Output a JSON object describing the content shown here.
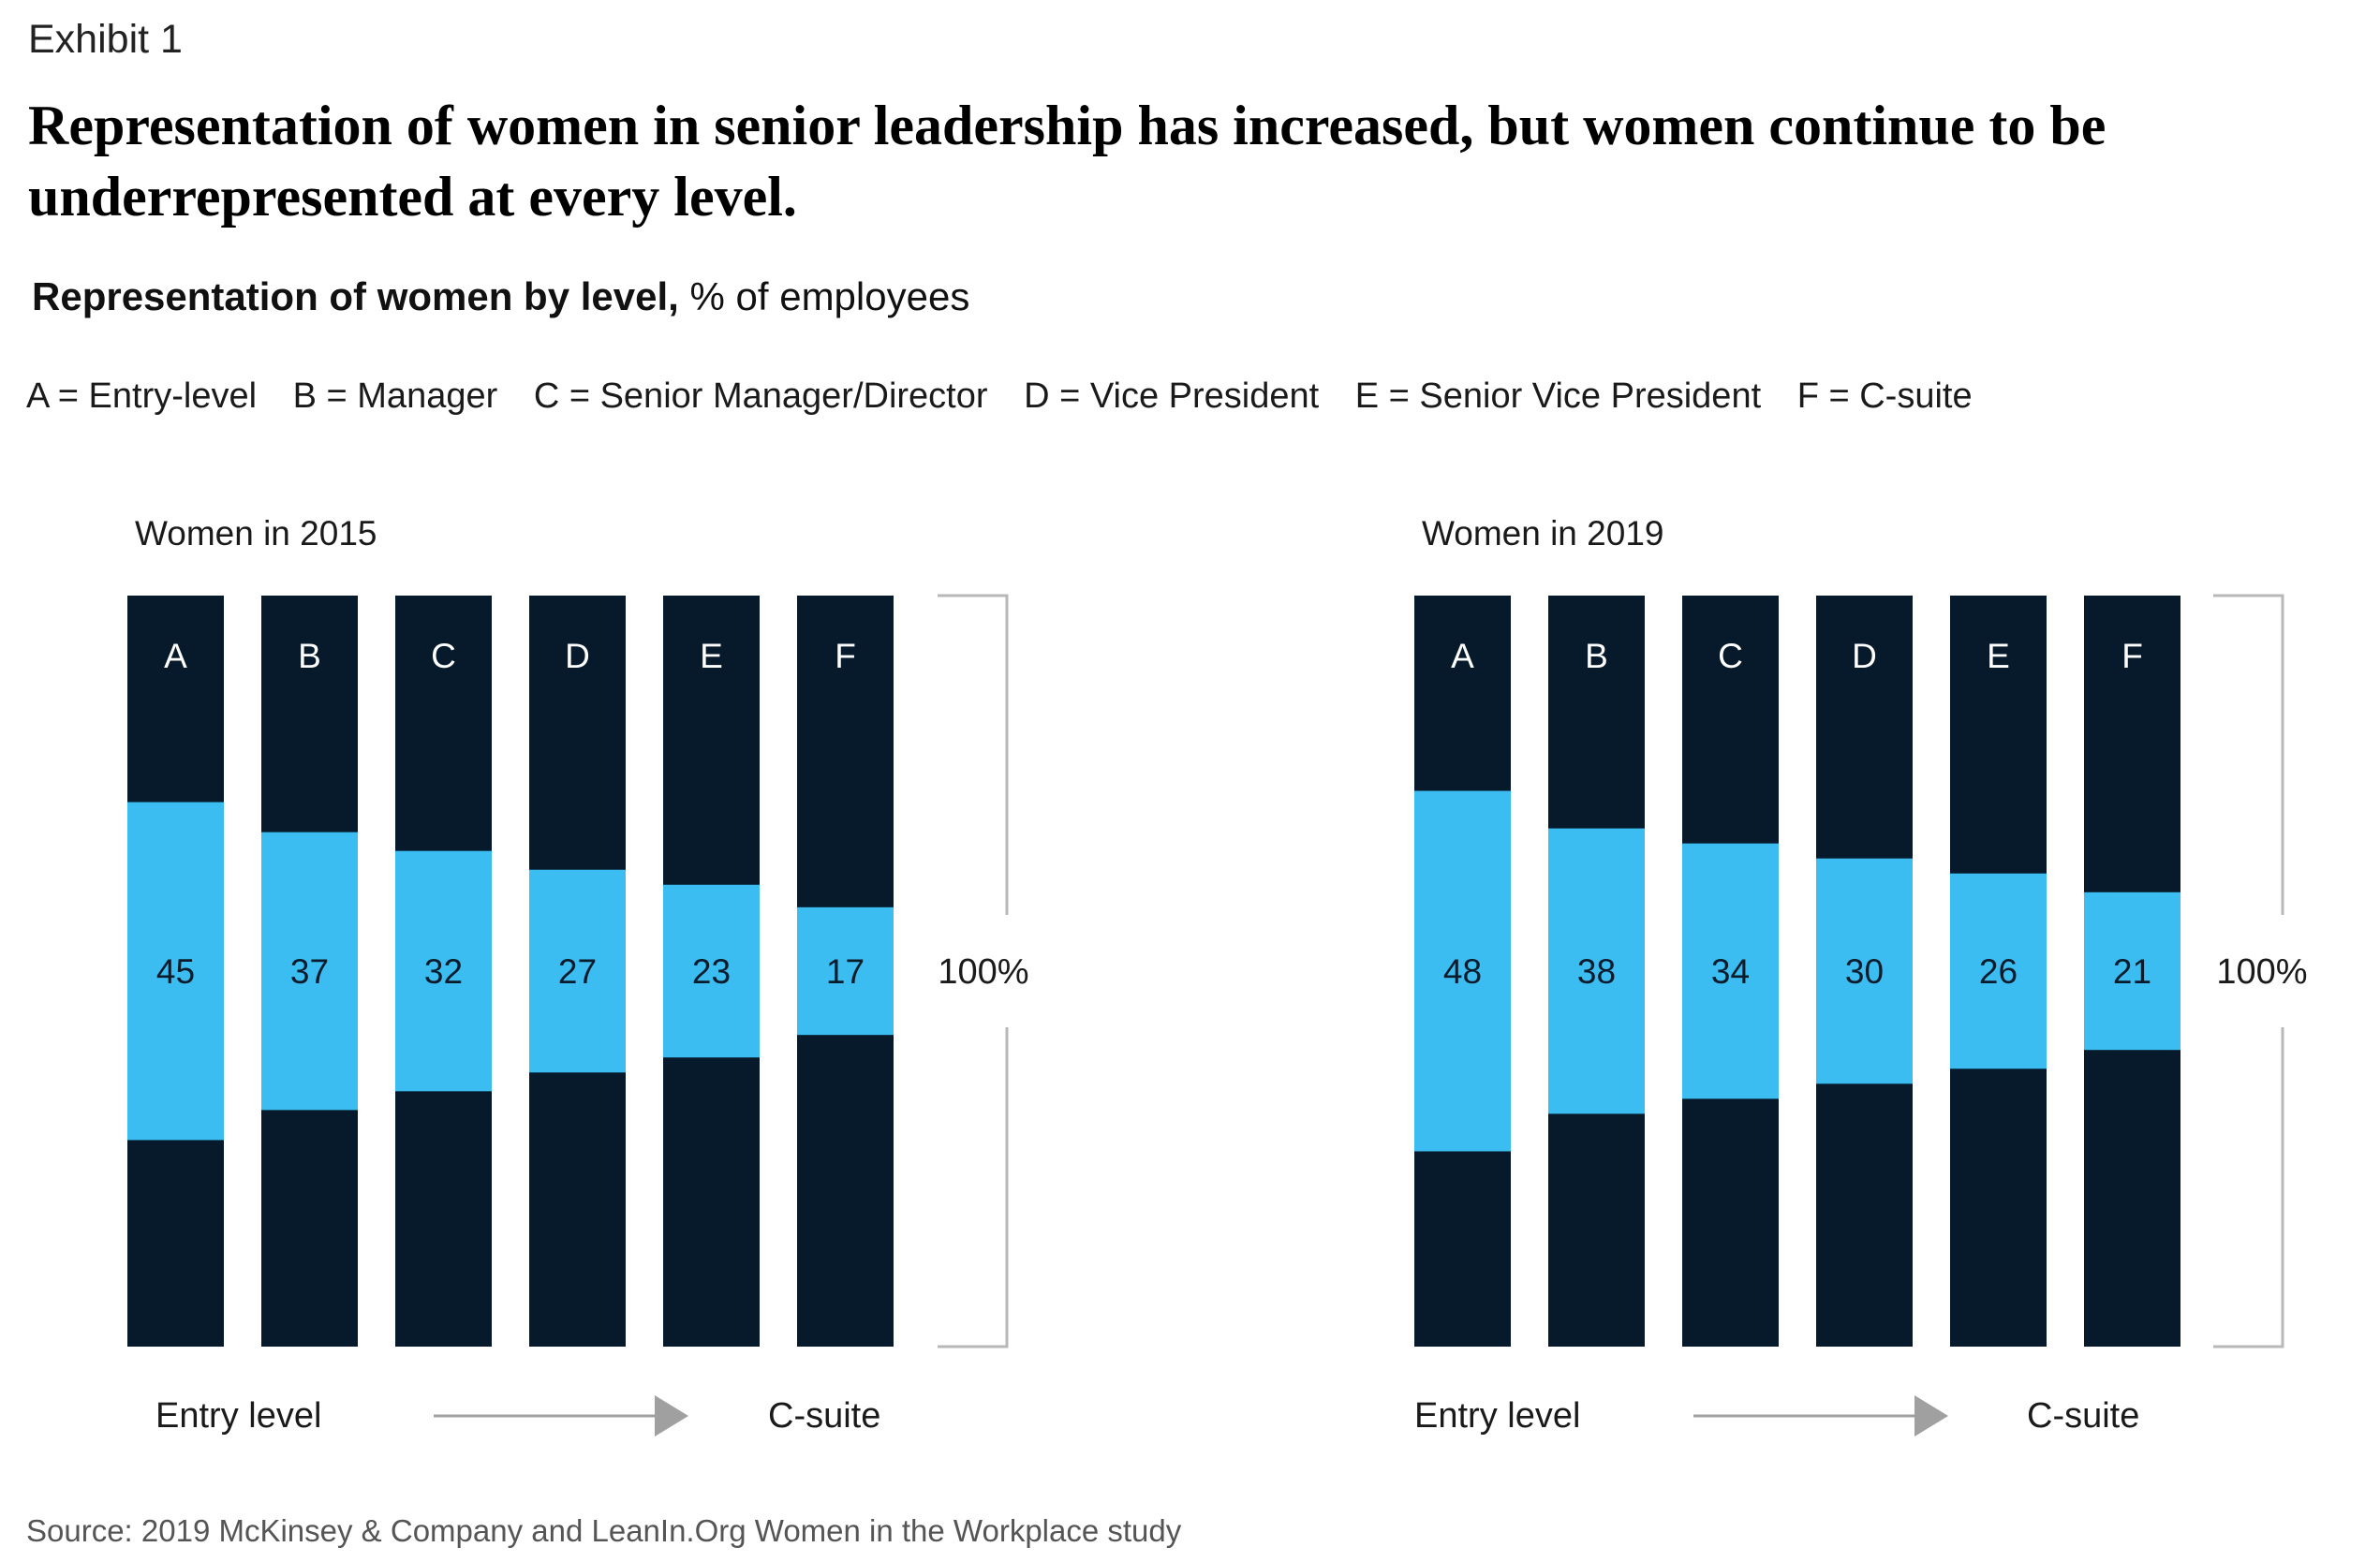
{
  "exhibit_label": "Exhibit 1",
  "headline": "Representation of women in senior leadership has increased, but women continue to be underrepresented at every level.",
  "subtitle": {
    "bold": "Representation of women by level,",
    "regular": " % of employees"
  },
  "legend": [
    "A = Entry-level",
    "B = Manager",
    "C = Senior Manager/Director",
    "D = Vice President",
    "E = Senior Vice President",
    "F = C-suite"
  ],
  "source": "Source: 2019 McKinsey & Company and LeanIn.Org Women in the Workplace study",
  "colors": {
    "bar_dark": "#061a2c",
    "women_segment": "#3bbdf1",
    "bracket": "#b8b8b8",
    "arrow": "#a0a0a0"
  },
  "chart_data": [
    {
      "type": "bar",
      "title": "Women in 2015",
      "categories": [
        "A",
        "B",
        "C",
        "D",
        "E",
        "F"
      ],
      "values": [
        45,
        37,
        32,
        27,
        23,
        17
      ],
      "total_label": "100%",
      "axis_start_label": "Entry level",
      "axis_end_label": "C-suite"
    },
    {
      "type": "bar",
      "title": "Women in 2019",
      "categories": [
        "A",
        "B",
        "C",
        "D",
        "E",
        "F"
      ],
      "values": [
        48,
        38,
        34,
        30,
        26,
        21
      ],
      "total_label": "100%",
      "axis_start_label": "Entry level",
      "axis_end_label": "C-suite"
    }
  ]
}
